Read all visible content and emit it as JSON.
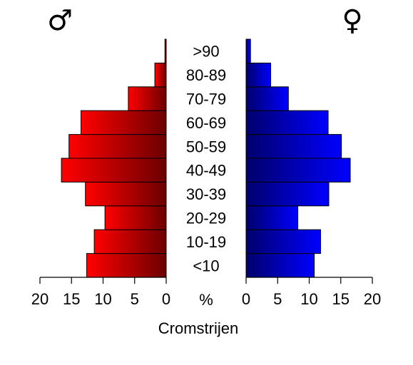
{
  "chart_data": {
    "type": "bar",
    "orientation": "horizontal",
    "subtype": "population-pyramid",
    "title": "",
    "xlabel": "Cromstrijen",
    "axis_unit_label": "%",
    "left_header": "♂",
    "right_header": "♀",
    "categories": [
      "<10",
      "10-19",
      "20-29",
      "30-39",
      "40-49",
      "50-59",
      "60-69",
      "70-79",
      "80-89",
      ">90"
    ],
    "xlim": [
      0,
      20
    ],
    "xticks": [
      0,
      5,
      10,
      15,
      20
    ],
    "left_ticks": [
      "20",
      "15",
      "10",
      "5",
      "0"
    ],
    "right_ticks": [
      "0",
      "5",
      "10",
      "15",
      "20"
    ],
    "series": [
      {
        "side": "left",
        "values": [
          12.6,
          11.4,
          9.7,
          12.8,
          16.6,
          15.4,
          13.5,
          6.0,
          1.8,
          0.2
        ],
        "color_outer": "#ff0000",
        "color_inner": "#6b0000"
      },
      {
        "side": "right",
        "values": [
          10.8,
          11.8,
          8.2,
          13.1,
          16.5,
          15.1,
          13.0,
          6.7,
          3.9,
          0.7
        ],
        "color_outer": "#0000ff",
        "color_inner": "#00006b"
      }
    ],
    "grid": false,
    "legend": "none"
  }
}
